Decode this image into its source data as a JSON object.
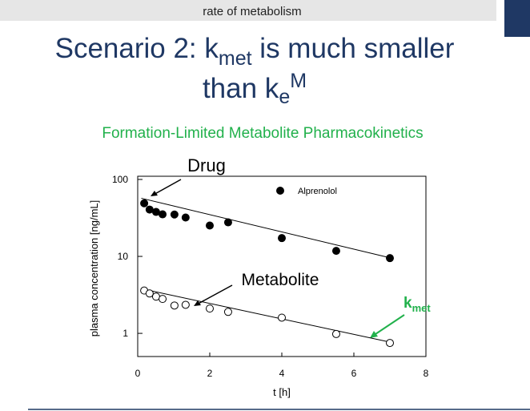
{
  "header": {
    "text": "rate of metabolism"
  },
  "slide": {
    "title": {
      "line1": [
        "Scenario 2: k",
        "met",
        " is much smaller"
      ],
      "line2": [
        "than k",
        "e",
        "M"
      ]
    },
    "subtitle": "Formation-Limited Metabolite Pharmacokinetics"
  },
  "chart_data": {
    "type": "scatter",
    "xlabel": "t [h]",
    "ylabel": "plasma concentration [ng/mL]",
    "xlim": [
      0,
      8
    ],
    "xticks": [
      0,
      2,
      4,
      6,
      8
    ],
    "ylim": [
      0.5,
      110
    ],
    "yticks": [
      1,
      10,
      100
    ],
    "yscale": "log",
    "legend": "top-right",
    "series": [
      {
        "name": "Alprenolol",
        "color": "#000000",
        "marker": "filled",
        "x": [
          0.18,
          0.33,
          0.51,
          0.69,
          1.02,
          1.33,
          2.0,
          2.51,
          4.0,
          5.51,
          7.0
        ],
        "values": [
          49,
          40.6,
          37.8,
          35.2,
          35,
          32,
          25.2,
          27.7,
          17.3,
          11.8,
          9.5
        ]
      },
      {
        "color": "#000000",
        "marker": "open",
        "x": [
          0.18,
          0.33,
          0.51,
          0.69,
          1.02,
          1.33,
          2.0,
          2.51,
          4.0,
          5.51,
          7.0
        ],
        "values": [
          3.6,
          3.3,
          3.0,
          2.8,
          2.3,
          2.35,
          2.1,
          1.9,
          1.6,
          0.98,
          0.75
        ]
      }
    ],
    "fits": [
      {
        "x": [
          0.1,
          7
        ],
        "values": [
          57,
          9.6
        ]
      },
      {
        "x": [
          0.1,
          7
        ],
        "values": [
          3.8,
          0.77
        ]
      }
    ],
    "annotations": [
      "Drug",
      "Metabolite"
    ],
    "kmet": {
      "parts": [
        "k",
        "met"
      ],
      "color": "#22b14c"
    }
  }
}
